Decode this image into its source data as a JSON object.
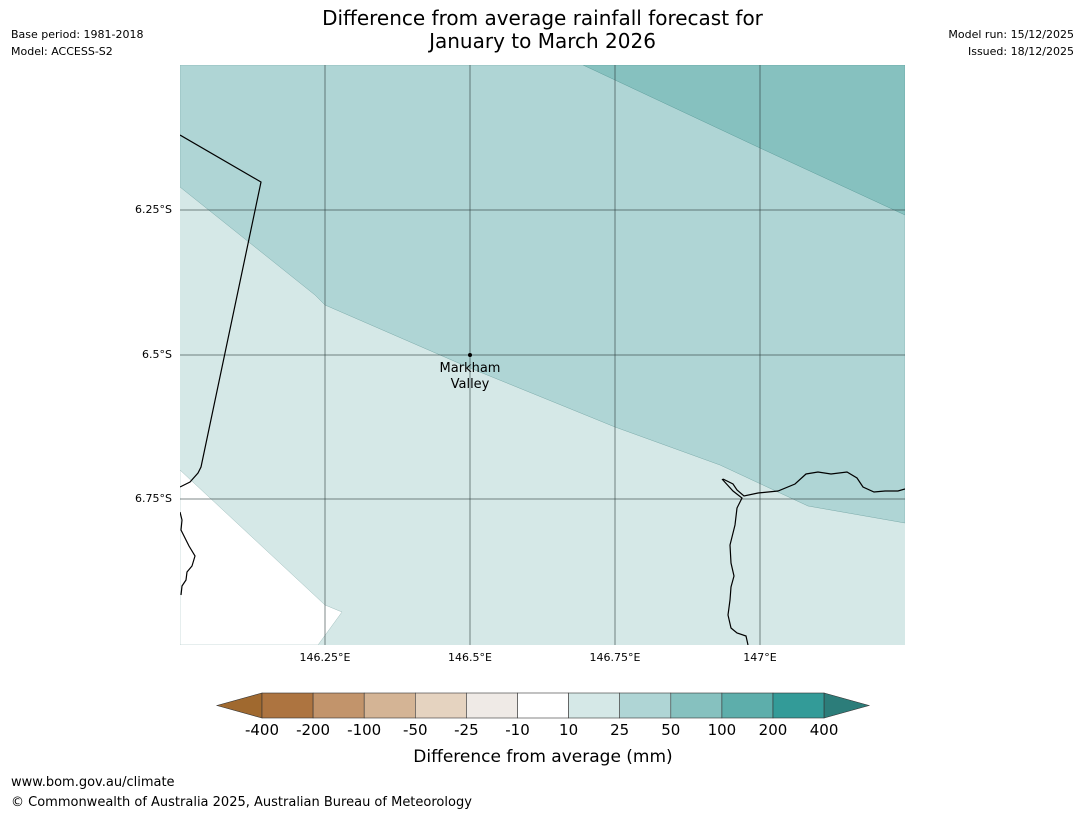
{
  "title": {
    "line1": "Difference from average rainfall forecast for",
    "line2": "January to March 2026"
  },
  "meta_left": {
    "base_period": "Base period: 1981-2018",
    "model": "Model: ACCESS-S2"
  },
  "meta_right": {
    "model_run": "Model run: 15/12/2025",
    "issued": "Issued: 18/12/2025"
  },
  "map": {
    "lat_labels": [
      "6.25°S",
      "6.5°S",
      "6.75°S"
    ],
    "lon_labels": [
      "146.25°E",
      "146.5°E",
      "146.75°E",
      "147°E"
    ],
    "place": {
      "name_line1": "Markham",
      "name_line2": "Valley"
    },
    "fill_colors": {
      "band_10_25": "#d5e8e7",
      "band_25_50": "#afd5d5",
      "band_50_100": "#86c1bf"
    }
  },
  "colorbar": {
    "label": "Difference from average (mm)",
    "ticks": [
      "-400",
      "-200",
      "-100",
      "-50",
      "-25",
      "-10",
      "10",
      "25",
      "50",
      "100",
      "200",
      "400"
    ],
    "colors": [
      "#a0692f",
      "#ad7440",
      "#c2946b",
      "#d4b495",
      "#e5d3c0",
      "#efeae6",
      "#ffffff",
      "#d5e8e7",
      "#afd5d5",
      "#86c1bf",
      "#5daeab",
      "#339b98",
      "#2c7d7a"
    ]
  },
  "footer": {
    "url": "www.bom.gov.au/climate",
    "copyright": "© Commonwealth of Australia 2025, Australian Bureau of Meteorology"
  }
}
